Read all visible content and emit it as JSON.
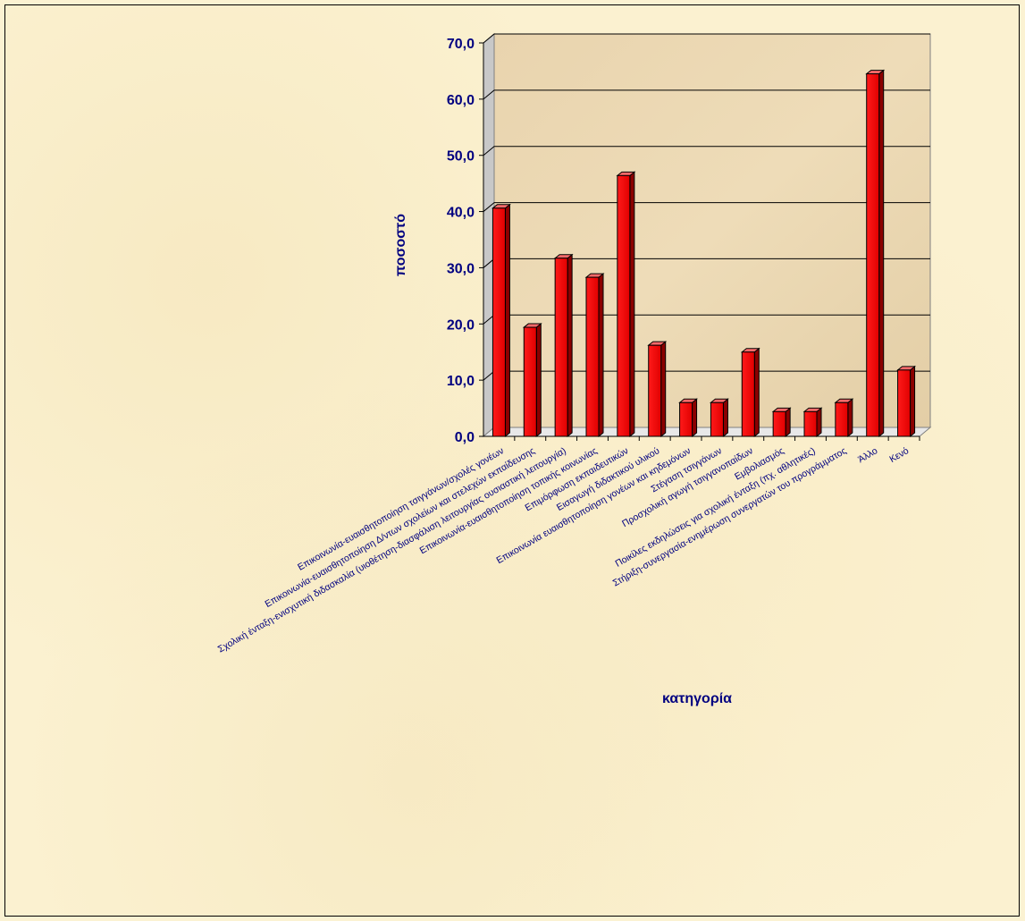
{
  "chart_data": {
    "type": "bar",
    "xlabel": "κατηγορία",
    "ylabel": "ποσοστό",
    "ylim": [
      0,
      70
    ],
    "yticks": [
      "0,0",
      "10,0",
      "20,0",
      "30,0",
      "40,0",
      "50,0",
      "60,0",
      "70,0"
    ],
    "grid": true,
    "legend": "none",
    "colors": {
      "bar": "#ff0000",
      "bar_dark": "#8b0000",
      "wall": "#e7d3ad",
      "text": "#000080"
    },
    "categories": [
      "Επικοινωνία-ευαισθητοποίηση τσιγγάνων/σχολές γονέων",
      "Επικοινωνία-ευαισθητοποίηση Δ/ντων σχολείων και στελεχών εκπαίδευσης",
      "Σχολική ένταξη-ενισχυτική διδασκαλία (υιοθέτηση-διασφάλιση λειτουργίας ουσιαστική λειτουργία)",
      "Επικοινωνία-ευαισθητοποίηση τοπικής κοινωνίας",
      "Επιμόρφωση εκπαιδευτικών",
      "Εισαγωγή διδακτικού υλικού",
      "Επικοινωνία ευαισθητοποίηση γονέων και κηδεμόνων",
      "Στέγαση τσιγγάνων",
      "Προσχολική αγωγή τσιγγανοπαίδων",
      "Εμβολιασμός",
      "Ποικίλες εκδηλώσεις για σχολική ένταξη (πχ. αθλητικές)",
      "Στήριξη-συνεργασία-ενημέρωση συνεργατών του προγράμματος",
      "Άλλο",
      "Κενό"
    ],
    "values": [
      40.6,
      19.4,
      31.7,
      28.3,
      46.4,
      16.2,
      6.0,
      6.0,
      15.0,
      4.4,
      4.4,
      6.0,
      64.5,
      11.8
    ]
  }
}
